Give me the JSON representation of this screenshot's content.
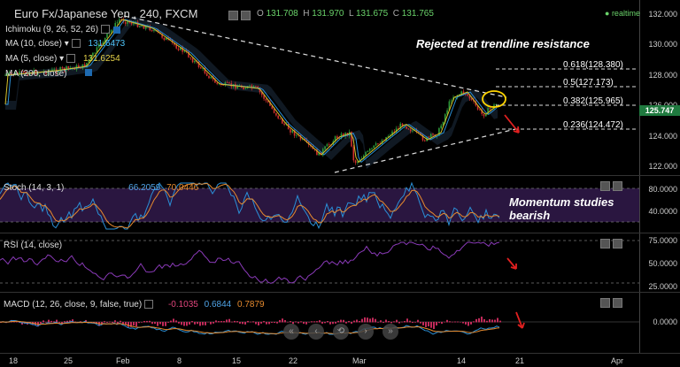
{
  "header": {
    "symbol": "Euro Fx/Japanese Yen",
    "interval": "240",
    "source": "FXCM",
    "title": "Euro Fx/Japanese Yen , 240, FXCM",
    "open_label": "O",
    "open": "131.708",
    "high_label": "H",
    "high": "131.970",
    "low_label": "L",
    "low": "131.675",
    "close_label": "C",
    "close": "131.765",
    "realtime": "realtime"
  },
  "indicators": {
    "ichimoku": "Ichimoku (9, 26, 52, 26)",
    "ma10": "MA (10, close)",
    "ma10_value": "131.6473",
    "ma5": "MA (5, close)",
    "ma5_value": "131.6254",
    "ma200": "MA (200, close)"
  },
  "price_axis": {
    "ticks": [
      "132.000",
      "130.000",
      "128.000",
      "126.000",
      "124.000",
      "122.000"
    ],
    "last_price": "125.747"
  },
  "fib_levels": [
    {
      "label": "0.618(128.380)"
    },
    {
      "label": "0.5(127.173)"
    },
    {
      "label": "0.382(125.965)"
    },
    {
      "label": "0.236(124.472)"
    }
  ],
  "annotations": {
    "trendline": "Rejected at trendline resistance",
    "momentum_line1": "Momentum studies",
    "momentum_line2": "bearish"
  },
  "stoch": {
    "label": "Stoch (14, 3, 1)",
    "value1": "66.2059",
    "value2": "70.0446",
    "ticks": [
      "80.0000",
      "40.0000"
    ]
  },
  "rsi": {
    "label": "RSI (14, close)",
    "ticks": [
      "75.0000",
      "50.0000",
      "25.0000"
    ]
  },
  "macd": {
    "label": "MACD (12, 26, close, 9, false, true)",
    "hist": "-0.1035",
    "macd": "0.6844",
    "signal": "0.7879",
    "ticks": [
      "0.0000"
    ]
  },
  "x_axis": [
    "18",
    "25",
    "Feb",
    "8",
    "15",
    "22",
    "Mar",
    "14",
    "21",
    "Apr"
  ],
  "colors": {
    "candle_up": "#2e9c3a",
    "candle_down": "#d0312d",
    "ma_blue": "#2a8fd6",
    "ma_yellow": "#d6c22a",
    "stoch_fill": "#2a1640",
    "rsi_line": "#8a3ab8",
    "last_price_tag": "#1f7a3f",
    "ma10_tag": "#1e6ab0"
  }
}
